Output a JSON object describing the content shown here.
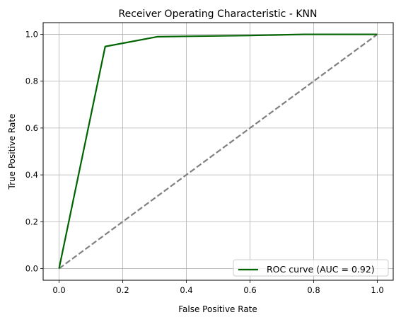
{
  "chart_data": {
    "type": "line",
    "title": "Receiver Operating Characteristic - KNN",
    "xlabel": "False Positive Rate",
    "ylabel": "True Positive Rate",
    "xlim": [
      -0.05,
      1.05
    ],
    "ylim": [
      -0.05,
      1.05
    ],
    "xticks": [
      0.0,
      0.2,
      0.4,
      0.6,
      0.8,
      1.0
    ],
    "yticks": [
      0.0,
      0.2,
      0.4,
      0.6,
      0.8,
      1.0
    ],
    "xtick_labels": [
      "0.0",
      "0.2",
      "0.4",
      "0.6",
      "0.8",
      "1.0"
    ],
    "ytick_labels": [
      "0.0",
      "0.2",
      "0.4",
      "0.6",
      "0.8",
      "1.0"
    ],
    "grid": true,
    "legend_position": "lower-right",
    "series": [
      {
        "name": "ROC curve (AUC = 0.92)",
        "color": "#006400",
        "style": "solid",
        "x": [
          0.0,
          0.145,
          0.31,
          0.6,
          0.77,
          1.0
        ],
        "y": [
          0.0,
          0.948,
          0.99,
          0.995,
          1.0,
          1.0
        ]
      },
      {
        "name": "",
        "color": "#808080",
        "style": "dashed",
        "x": [
          0.0,
          1.0
        ],
        "y": [
          0.0,
          1.0
        ]
      }
    ]
  }
}
